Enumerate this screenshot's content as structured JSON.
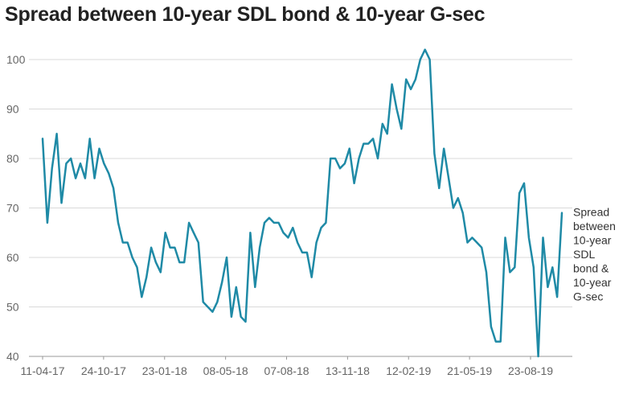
{
  "chart_data": {
    "type": "line",
    "title": "Spread between 10-year SDL bond & 10-year G-sec",
    "xlabel": "",
    "ylabel": "",
    "ylim": [
      40,
      100
    ],
    "yticks": [
      40,
      50,
      60,
      70,
      80,
      90,
      100
    ],
    "xtick_labels": [
      "11-04-17",
      "24-10-17",
      "23-01-18",
      "08-05-18",
      "07-08-18",
      "13-11-18",
      "12-02-19",
      "21-05-19",
      "23-08-19"
    ],
    "grid": true,
    "legend": "end-of-line label",
    "series": [
      {
        "name": "Spread between 10-year SDL bond & 10-year G-sec",
        "name_lines": [
          "Spread",
          "between",
          "10-year",
          "SDL",
          "bond &",
          "10-year",
          "G-sec"
        ],
        "color": "#1f8aa6",
        "values": [
          84,
          67,
          78,
          85,
          71,
          79,
          80,
          76,
          79,
          76,
          84,
          76,
          82,
          79,
          77,
          74,
          67,
          63,
          63,
          60,
          58,
          52,
          56,
          62,
          59,
          57,
          65,
          62,
          62,
          59,
          59,
          67,
          65,
          63,
          51,
          50,
          49,
          51,
          55,
          60,
          48,
          54,
          48,
          47,
          65,
          54,
          62,
          67,
          68,
          67,
          67,
          65,
          64,
          66,
          63,
          61,
          61,
          56,
          63,
          66,
          67,
          80,
          80,
          78,
          79,
          82,
          75,
          80,
          83,
          83,
          84,
          80,
          87,
          85,
          95,
          90,
          86,
          96,
          94,
          96,
          100,
          102,
          100,
          81,
          74,
          82,
          76,
          70,
          72,
          69,
          63,
          64,
          63,
          62,
          57,
          46,
          43,
          43,
          64,
          57,
          58,
          73,
          75,
          64,
          58,
          40,
          64,
          54,
          58,
          52,
          69
        ]
      }
    ]
  }
}
